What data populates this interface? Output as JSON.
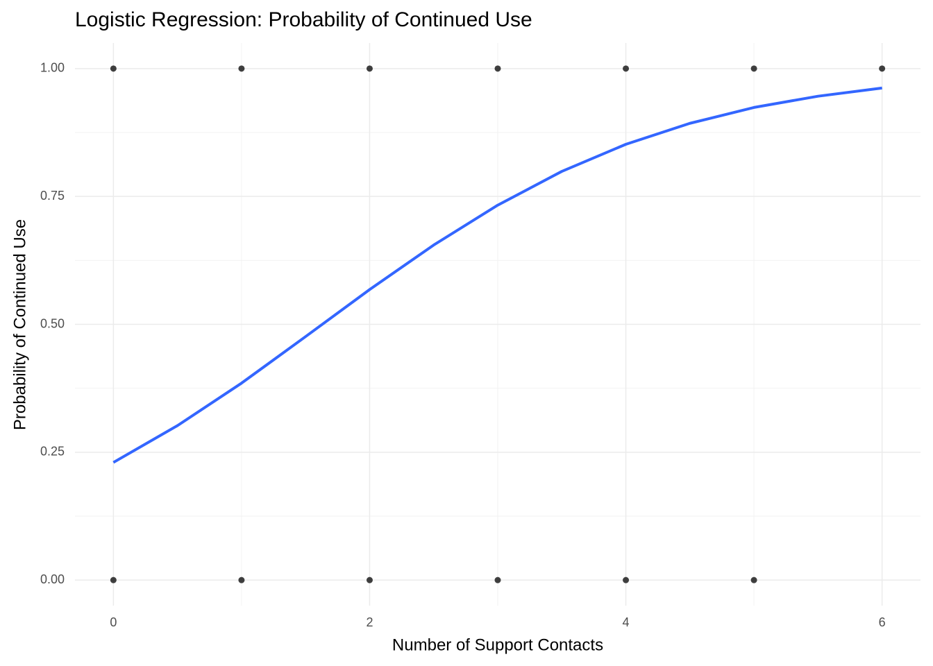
{
  "chart_data": {
    "type": "scatter",
    "title": "Logistic Regression: Probability of Continued Use",
    "x_label": "Number of Support Contacts",
    "y_label": "Probability of Continued Use",
    "xlim": [
      -0.3,
      6.3
    ],
    "ylim": [
      -0.05,
      1.05
    ],
    "xticks": [
      0,
      2,
      4,
      6
    ],
    "minor_xticks": [
      1,
      3,
      5
    ],
    "yticks": [
      {
        "value": 0,
        "label": "0.00"
      },
      {
        "value": 0.25,
        "label": "0.25"
      },
      {
        "value": 0.5,
        "label": "0.50"
      },
      {
        "value": 0.75,
        "label": "0.75"
      },
      {
        "value": 1,
        "label": "1.00"
      }
    ],
    "minor_yticks": [
      0.125,
      0.375,
      0.625,
      0.875
    ],
    "grid": true,
    "points": {
      "color": "#000000",
      "x": [
        0,
        1,
        2,
        3,
        4,
        5,
        6,
        0,
        1,
        2,
        3,
        4,
        5
      ],
      "y": [
        1,
        1,
        1,
        1,
        1,
        1,
        1,
        0,
        0,
        0,
        0,
        0,
        0
      ]
    },
    "fit": {
      "color": "#3366ff",
      "x": [
        0,
        0.5,
        1,
        1.5,
        2,
        2.5,
        3,
        3.5,
        4,
        4.5,
        5,
        5.5,
        6
      ],
      "y": [
        0.23,
        0.302,
        0.385,
        0.476,
        0.568,
        0.655,
        0.733,
        0.799,
        0.852,
        0.893,
        0.924,
        0.946,
        0.962
      ]
    }
  }
}
